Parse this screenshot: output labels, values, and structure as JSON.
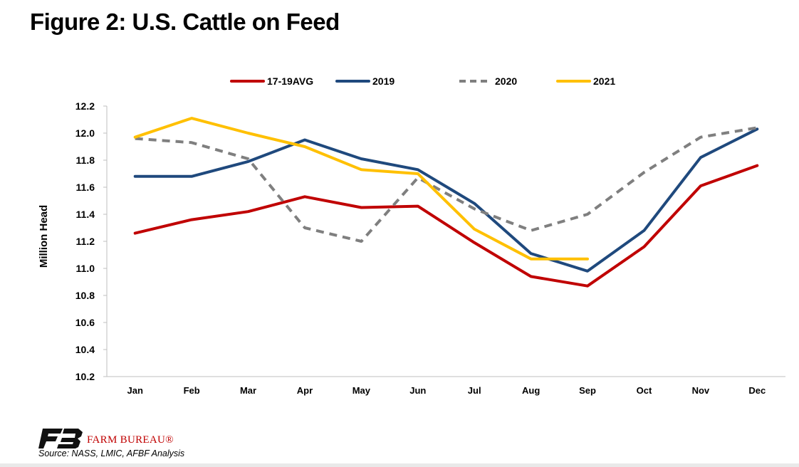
{
  "title": "Figure 2: U.S. Cattle on Feed",
  "footer": {
    "brand": "FARM BUREAU®",
    "source": "Source: NASS, LMIC, AFBF Analysis"
  },
  "chart_data": {
    "type": "line",
    "categories": [
      "Jan",
      "Feb",
      "Mar",
      "Apr",
      "May",
      "Jun",
      "Jul",
      "Aug",
      "Sep",
      "Oct",
      "Nov",
      "Dec"
    ],
    "ylabel": "Million Head",
    "ylim": [
      10.2,
      12.2
    ],
    "yticks": [
      "12.2",
      "12.0",
      "11.8",
      "11.6",
      "11.4",
      "11.2",
      "11.0",
      "10.8",
      "10.6",
      "10.4",
      "10.2"
    ],
    "grid": false,
    "legend_position": "top",
    "series": [
      {
        "name": "17-19AVG",
        "color": "#c00000",
        "dash": false,
        "values": [
          11.26,
          11.36,
          11.42,
          11.53,
          11.45,
          11.46,
          11.19,
          10.94,
          10.87,
          11.16,
          11.61,
          11.76
        ]
      },
      {
        "name": "2019",
        "color": "#1f497d",
        "dash": false,
        "values": [
          11.68,
          11.68,
          11.79,
          11.95,
          11.81,
          11.73,
          11.48,
          11.11,
          10.98,
          11.28,
          11.82,
          12.03
        ]
      },
      {
        "name": "2020",
        "color": "#7f7f7f",
        "dash": true,
        "values": [
          11.96,
          11.93,
          11.81,
          11.3,
          11.2,
          11.67,
          11.44,
          11.28,
          11.4,
          11.71,
          11.97,
          12.04
        ]
      },
      {
        "name": "2021",
        "color": "#ffc000",
        "dash": false,
        "values": [
          11.97,
          12.11,
          12.0,
          11.9,
          11.73,
          11.7,
          11.29,
          11.07,
          11.07,
          null,
          null,
          null
        ]
      }
    ]
  }
}
